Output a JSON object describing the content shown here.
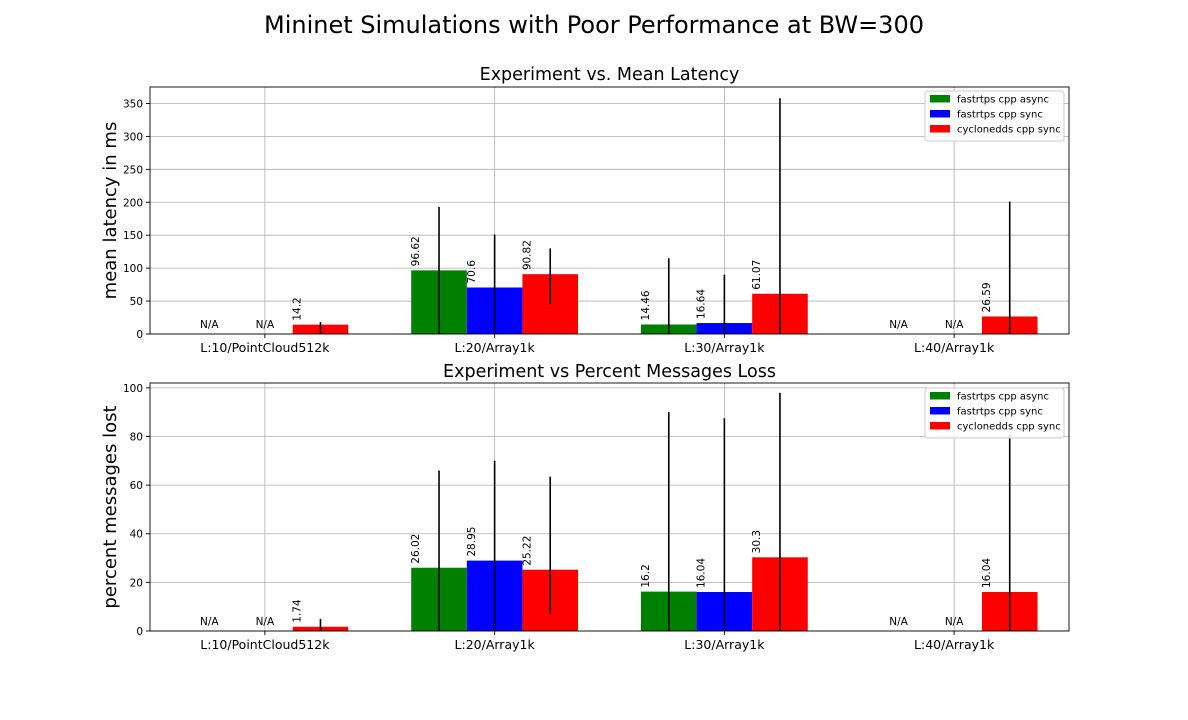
{
  "figure": {
    "title": "Mininet Simulations with Poor Performance at BW=300"
  },
  "chart_data": [
    {
      "type": "bar",
      "title": "Experiment vs. Mean Latency",
      "xlabel": "",
      "ylabel": "mean latency in ms",
      "categories": [
        "L:10/PointCloud512k",
        "L:20/Array1k",
        "L:30/Array1k",
        "L:40/Array1k"
      ],
      "ylim": [
        0,
        375
      ],
      "yticks": [
        0,
        50,
        100,
        150,
        200,
        250,
        300,
        350
      ],
      "grid": true,
      "legend": "top-right",
      "series": [
        {
          "name": "fastrtps cpp async",
          "color": "#008000",
          "values": [
            null,
            96.62,
            14.46,
            null
          ],
          "labels": [
            "N/A",
            "96.62",
            "14.46",
            "N/A"
          ],
          "err_low": [
            null,
            0,
            0,
            null
          ],
          "err_high": [
            null,
            193,
            115,
            null
          ]
        },
        {
          "name": "fastrtps cpp sync",
          "color": "#0000ff",
          "values": [
            null,
            70.6,
            16.64,
            null
          ],
          "labels": [
            "N/A",
            "70.6",
            "16.64",
            "N/A"
          ],
          "err_low": [
            null,
            0,
            0,
            null
          ],
          "err_high": [
            null,
            151,
            90,
            null
          ]
        },
        {
          "name": "cyclonedds cpp sync",
          "color": "#ff0000",
          "values": [
            14.2,
            90.82,
            61.07,
            26.59
          ],
          "labels": [
            "14.2",
            "90.82",
            "61.07",
            "26.59"
          ],
          "err_low": [
            0,
            45,
            0,
            0
          ],
          "err_high": [
            18,
            130,
            358,
            201
          ]
        }
      ]
    },
    {
      "type": "bar",
      "title": "Experiment vs Percent Messages Loss",
      "xlabel": "",
      "ylabel": "percent messages lost",
      "categories": [
        "L:10/PointCloud512k",
        "L:20/Array1k",
        "L:30/Array1k",
        "L:40/Array1k"
      ],
      "ylim": [
        0,
        102
      ],
      "yticks": [
        0,
        20,
        40,
        60,
        80,
        100
      ],
      "grid": true,
      "legend": "top-right",
      "series": [
        {
          "name": "fastrtps cpp async",
          "color": "#008000",
          "values": [
            null,
            26.02,
            16.2,
            null
          ],
          "labels": [
            "N/A",
            "26.02",
            "16.2",
            "N/A"
          ],
          "err_low": [
            null,
            0,
            0,
            null
          ],
          "err_high": [
            null,
            66,
            90,
            null
          ]
        },
        {
          "name": "fastrtps cpp sync",
          "color": "#0000ff",
          "values": [
            null,
            28.95,
            16.04,
            null
          ],
          "labels": [
            "N/A",
            "28.95",
            "16.04",
            "N/A"
          ],
          "err_low": [
            null,
            0,
            0,
            null
          ],
          "err_high": [
            null,
            70,
            87.5,
            null
          ]
        },
        {
          "name": "cyclonedds cpp sync",
          "color": "#ff0000",
          "values": [
            1.74,
            25.22,
            30.3,
            16.04
          ],
          "labels": [
            "1.74",
            "25.22",
            "30.3",
            "16.04"
          ],
          "err_low": [
            0,
            7,
            0,
            0
          ],
          "err_high": [
            5,
            63.5,
            98,
            81
          ]
        }
      ]
    }
  ]
}
